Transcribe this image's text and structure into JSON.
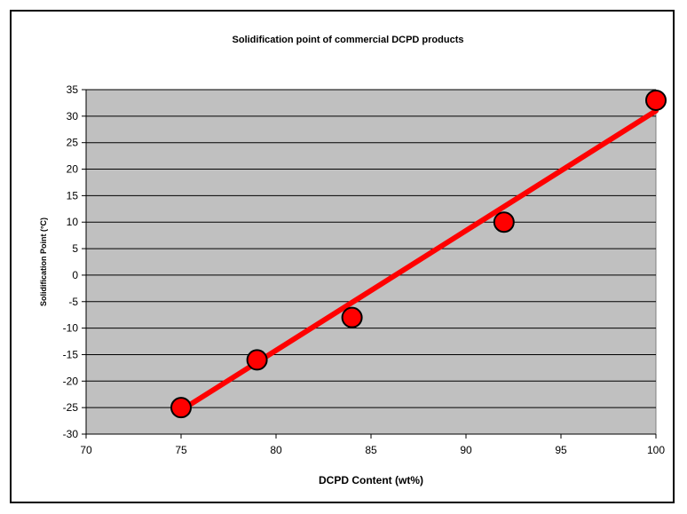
{
  "colors": {
    "plot_background": "#c0c0c0",
    "gridline": "#000000",
    "marker_fill": "#ff0000",
    "marker_stroke": "#000000",
    "trendline": "#ff0000"
  },
  "chart_data": {
    "type": "scatter",
    "title": "Solidification point of commercial DCPD products",
    "xlabel": "DCPD Content (wt%)",
    "ylabel": "Solidification Point (°C)",
    "xlim": [
      70,
      100
    ],
    "ylim": [
      -30,
      35
    ],
    "xticks": [
      70,
      75,
      80,
      85,
      90,
      95,
      100
    ],
    "yticks": [
      -30,
      -25,
      -20,
      -15,
      -10,
      -5,
      0,
      5,
      10,
      15,
      20,
      25,
      30,
      35
    ],
    "grid": "horizontal",
    "legend": "none",
    "series": [
      {
        "x": [
          75,
          79,
          84,
          92,
          100
        ],
        "y": [
          -25,
          -16,
          -8,
          10,
          33
        ],
        "marker": "circle"
      }
    ],
    "trendline": {
      "type": "linear",
      "x": [
        75,
        100
      ],
      "y": [
        -25.5,
        31
      ]
    }
  }
}
